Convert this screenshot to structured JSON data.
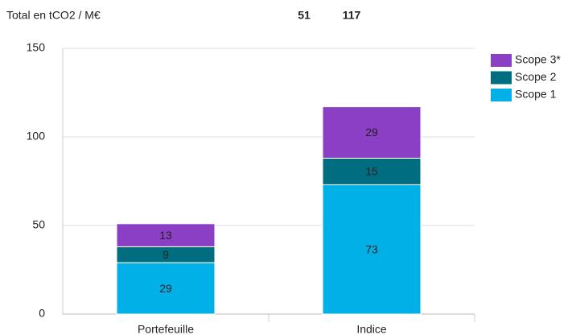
{
  "chart_data": {
    "type": "stacked_bar",
    "ylabel": "Total en tCO2 / M€",
    "categories": [
      "Portefeuille",
      "Indice"
    ],
    "totals": [
      51,
      117
    ],
    "series": [
      {
        "name": "Scope 1",
        "color": "#00b0e6",
        "values": [
          29,
          73
        ]
      },
      {
        "name": "Scope 2",
        "color": "#006d80",
        "values": [
          9,
          15
        ]
      },
      {
        "name": "Scope 3*",
        "color": "#8b3fc4",
        "values": [
          13,
          29
        ]
      }
    ],
    "ylim": [
      0,
      150
    ],
    "yticks": [
      0,
      50,
      100,
      150
    ],
    "grid": true,
    "legend": "upper right"
  }
}
